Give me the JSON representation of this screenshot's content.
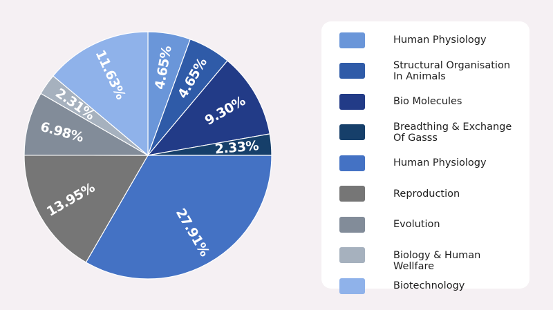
{
  "chart_data": {
    "type": "pie",
    "start": "top",
    "direction": "clockwise",
    "slices": [
      {
        "label": "Human Physiology",
        "value": 4.65,
        "value_label": "4.65%",
        "color": "#6a96d9"
      },
      {
        "label": "Structural Organisation In Animals",
        "value": 4.65,
        "value_label": "4.65%",
        "color": "#2f5ba8"
      },
      {
        "label": "Bio Molecules",
        "value": 9.3,
        "value_label": "9.30%",
        "color": "#223b87"
      },
      {
        "label": "Breadthing & Exchange Of Gasss",
        "value": 2.33,
        "value_label": "2.33%",
        "color": "#163f6a"
      },
      {
        "label": "Human Physiology",
        "value": 27.91,
        "value_label": "27.91%",
        "color": "#4472c4"
      },
      {
        "label": "Reproduction",
        "value": 13.95,
        "value_label": "13.95%",
        "color": "#767676"
      },
      {
        "label": "Evolution",
        "value": 6.98,
        "value_label": "6.98%",
        "color": "#828c99"
      },
      {
        "label": "Biology & Human Wellfare",
        "value": 2.31,
        "value_label": "2.31%",
        "color": "#a6b1be"
      },
      {
        "label": "Biotechnology",
        "value": 11.63,
        "value_label": "11.63%",
        "color": "#8fb2ea"
      }
    ],
    "legend_position": "right"
  }
}
